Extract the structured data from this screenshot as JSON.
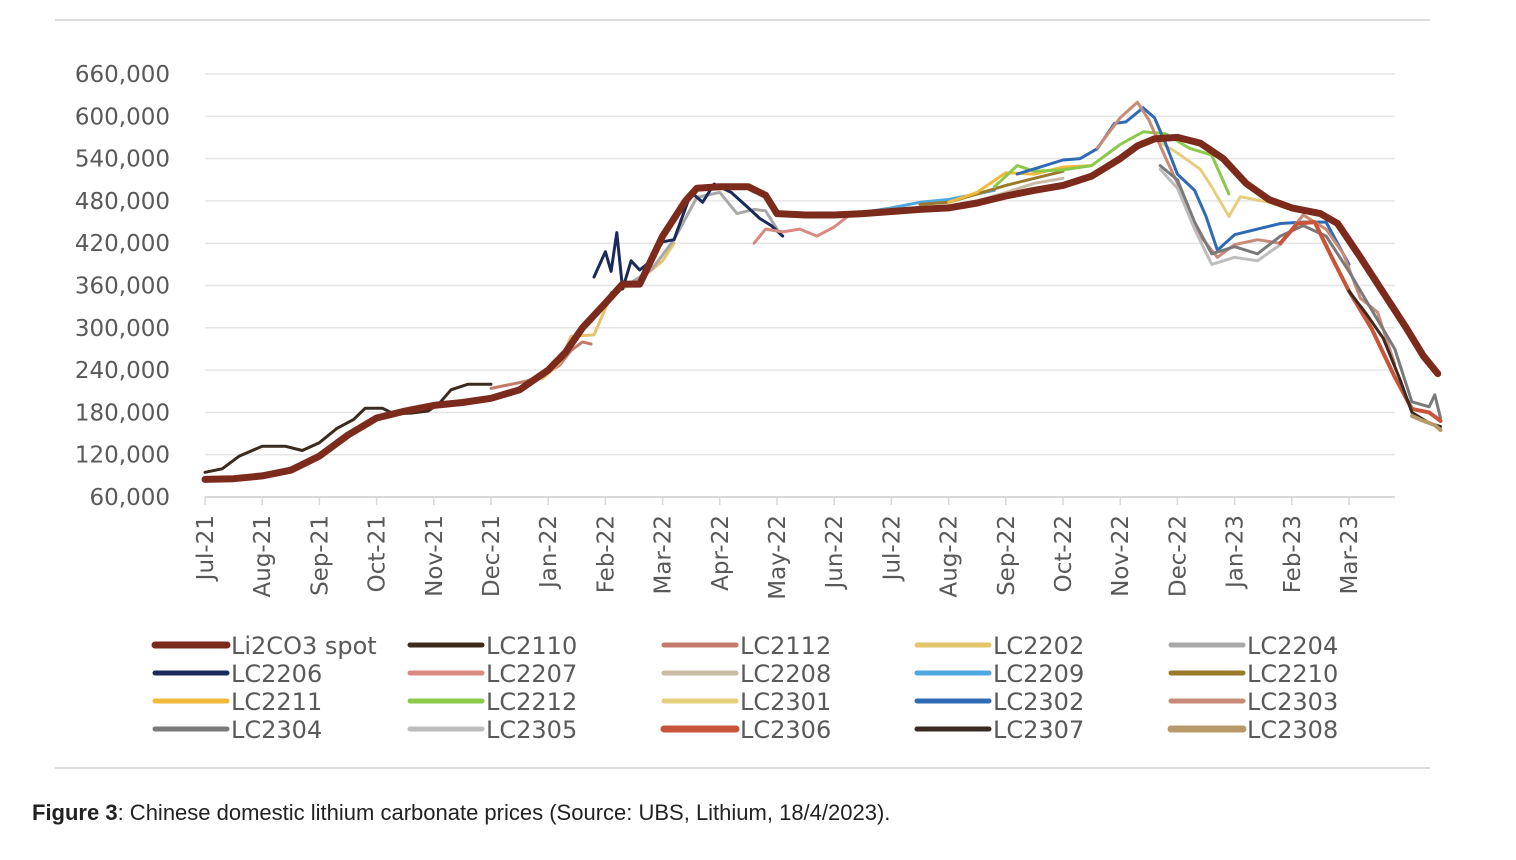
{
  "caption": {
    "label": "Figure 3",
    "text": ": Chinese domestic lithium carbonate prices (Source: UBS, Lithium, 18/4/2023)."
  },
  "chart_data": {
    "type": "line",
    "title": "",
    "xlabel": "",
    "ylabel": "",
    "ylim": [
      60000,
      660000
    ],
    "yticks": [
      "60,000",
      "120,000",
      "180,000",
      "240,000",
      "300,000",
      "360,000",
      "420,000",
      "480,000",
      "540,000",
      "600,000",
      "660,000"
    ],
    "ytick_values": [
      60000,
      120000,
      180000,
      240000,
      300000,
      360000,
      420000,
      480000,
      540000,
      600000,
      660000
    ],
    "xticks": [
      "Jul-21",
      "Aug-21",
      "Sep-21",
      "Oct-21",
      "Nov-21",
      "Dec-21",
      "Jan-22",
      "Feb-22",
      "Mar-22",
      "Apr-22",
      "May-22",
      "Jun-22",
      "Jul-22",
      "Aug-22",
      "Sep-22",
      "Oct-22",
      "Nov-22",
      "Dec-22",
      "Jan-23",
      "Feb-23",
      "Mar-23"
    ],
    "x_unit": "months since Jul-21",
    "xlim": [
      0,
      21.8
    ],
    "grid": "horizontal",
    "legend_position": "bottom",
    "series": [
      {
        "name": "Li2CO3 spot",
        "color": "#7B2A1C",
        "width": 7,
        "points": [
          [
            0,
            85000
          ],
          [
            0.5,
            86000
          ],
          [
            1,
            90000
          ],
          [
            1.5,
            98000
          ],
          [
            2,
            118000
          ],
          [
            2.5,
            148000
          ],
          [
            3,
            172000
          ],
          [
            3.5,
            182000
          ],
          [
            4,
            190000
          ],
          [
            4.5,
            194000
          ],
          [
            5,
            200000
          ],
          [
            5.5,
            212000
          ],
          [
            6,
            240000
          ],
          [
            6.3,
            265000
          ],
          [
            6.6,
            300000
          ],
          [
            7,
            335000
          ],
          [
            7.3,
            362000
          ],
          [
            7.6,
            362000
          ],
          [
            8,
            430000
          ],
          [
            8.4,
            480000
          ],
          [
            8.6,
            498000
          ],
          [
            9,
            500000
          ],
          [
            9.5,
            500000
          ],
          [
            9.8,
            488000
          ],
          [
            10,
            462000
          ],
          [
            10.5,
            460000
          ],
          [
            11,
            460000
          ],
          [
            11.5,
            462000
          ],
          [
            12,
            465000
          ],
          [
            12.5,
            468000
          ],
          [
            13,
            470000
          ],
          [
            13.5,
            477000
          ],
          [
            14,
            487000
          ],
          [
            14.5,
            495000
          ],
          [
            15,
            502000
          ],
          [
            15.5,
            515000
          ],
          [
            16,
            540000
          ],
          [
            16.3,
            558000
          ],
          [
            16.6,
            568000
          ],
          [
            17,
            570000
          ],
          [
            17.4,
            562000
          ],
          [
            17.8,
            540000
          ],
          [
            18.2,
            505000
          ],
          [
            18.6,
            482000
          ],
          [
            19,
            470000
          ],
          [
            19.5,
            462000
          ],
          [
            19.8,
            448000
          ],
          [
            20.2,
            400000
          ],
          [
            20.6,
            350000
          ],
          [
            21,
            300000
          ],
          [
            21.3,
            260000
          ],
          [
            21.55,
            235000
          ]
        ]
      },
      {
        "name": "LC2110",
        "color": "#3B2A1E",
        "width": 3,
        "points": [
          [
            0,
            95000
          ],
          [
            0.3,
            100000
          ],
          [
            0.6,
            118000
          ],
          [
            1,
            132000
          ],
          [
            1.4,
            132000
          ],
          [
            1.7,
            126000
          ],
          [
            2,
            137000
          ],
          [
            2.3,
            157000
          ],
          [
            2.6,
            170000
          ],
          [
            2.8,
            186000
          ],
          [
            3.1,
            186000
          ],
          [
            3.3,
            178000
          ],
          [
            3.6,
            179000
          ],
          [
            3.9,
            182000
          ],
          [
            4.1,
            193000
          ],
          [
            4.3,
            212000
          ],
          [
            4.6,
            220000
          ],
          [
            5,
            220000
          ]
        ]
      },
      {
        "name": "LC2112",
        "color": "#C47A6A",
        "width": 3,
        "points": [
          [
            5,
            214000
          ],
          [
            5.3,
            219000
          ],
          [
            5.6,
            224000
          ],
          [
            5.9,
            232000
          ],
          [
            6.2,
            247000
          ],
          [
            6.4,
            268000
          ],
          [
            6.6,
            280000
          ],
          [
            6.75,
            277000
          ]
        ]
      },
      {
        "name": "LC2202",
        "color": "#E3C46A",
        "width": 3,
        "points": [
          [
            5.9,
            228000
          ],
          [
            6.2,
            250000
          ],
          [
            6.4,
            288000
          ],
          [
            6.8,
            290000
          ],
          [
            7.1,
            346000
          ],
          [
            7.4,
            360000
          ],
          [
            7.6,
            368000
          ],
          [
            8,
            395000
          ],
          [
            8.2,
            420000
          ]
        ]
      },
      {
        "name": "LC2204",
        "color": "#A8A8A8",
        "width": 3,
        "points": [
          [
            7.1,
            350000
          ],
          [
            7.4,
            362000
          ],
          [
            7.8,
            382000
          ],
          [
            8.2,
            425000
          ],
          [
            8.6,
            485000
          ],
          [
            9,
            492000
          ],
          [
            9.3,
            462000
          ],
          [
            9.6,
            468000
          ],
          [
            9.8,
            466000
          ],
          [
            10,
            440000
          ]
        ]
      },
      {
        "name": "LC2206",
        "color": "#1A2A5A",
        "width": 3,
        "points": [
          [
            6.8,
            372000
          ],
          [
            7,
            408000
          ],
          [
            7.1,
            380000
          ],
          [
            7.2,
            435000
          ],
          [
            7.3,
            355000
          ],
          [
            7.45,
            395000
          ],
          [
            7.6,
            382000
          ],
          [
            7.8,
            395000
          ],
          [
            8,
            422000
          ],
          [
            8.2,
            425000
          ],
          [
            8.5,
            492000
          ],
          [
            8.7,
            478000
          ],
          [
            8.9,
            504000
          ],
          [
            9.2,
            492000
          ],
          [
            9.5,
            470000
          ],
          [
            9.7,
            455000
          ],
          [
            9.9,
            445000
          ],
          [
            10.1,
            430000
          ]
        ]
      },
      {
        "name": "LC2207",
        "color": "#D98A80",
        "width": 3,
        "points": [
          [
            9.6,
            420000
          ],
          [
            9.8,
            440000
          ],
          [
            10.1,
            436000
          ],
          [
            10.4,
            440000
          ],
          [
            10.7,
            430000
          ],
          [
            11,
            443000
          ],
          [
            11.3,
            462000
          ],
          [
            11.6,
            460000
          ]
        ]
      },
      {
        "name": "LC2208",
        "color": "#C9BBA5",
        "width": 3,
        "points": [
          [
            11.3,
            460000
          ],
          [
            11.6,
            462000
          ],
          [
            12,
            464000
          ],
          [
            12.5,
            468000
          ],
          [
            13,
            472000
          ],
          [
            13.5,
            480000
          ],
          [
            14,
            492000
          ],
          [
            14.5,
            505000
          ],
          [
            15,
            512000
          ]
        ]
      },
      {
        "name": "LC2209",
        "color": "#4FA7E0",
        "width": 3,
        "points": [
          [
            11.6,
            465000
          ],
          [
            12,
            470000
          ],
          [
            12.5,
            478000
          ],
          [
            13,
            482000
          ],
          [
            13.5,
            490000
          ],
          [
            13.8,
            495000
          ]
        ]
      },
      {
        "name": "LC2210",
        "color": "#9A7A2A",
        "width": 3,
        "points": [
          [
            12.5,
            475000
          ],
          [
            13,
            478000
          ],
          [
            13.5,
            490000
          ],
          [
            14,
            502000
          ],
          [
            14.5,
            512000
          ],
          [
            15,
            522000
          ]
        ]
      },
      {
        "name": "LC2211",
        "color": "#F0B93A",
        "width": 3,
        "points": [
          [
            13,
            478000
          ],
          [
            13.5,
            492000
          ],
          [
            14,
            520000
          ],
          [
            14.5,
            518000
          ],
          [
            15,
            528000
          ],
          [
            15.5,
            530000
          ]
        ]
      },
      {
        "name": "LC2212",
        "color": "#8BC94B",
        "width": 3,
        "points": [
          [
            13.8,
            500000
          ],
          [
            14.2,
            530000
          ],
          [
            14.5,
            522000
          ],
          [
            15,
            524000
          ],
          [
            15.5,
            530000
          ],
          [
            16,
            560000
          ],
          [
            16.4,
            578000
          ],
          [
            16.8,
            575000
          ],
          [
            17.2,
            555000
          ],
          [
            17.6,
            545000
          ],
          [
            17.9,
            490000
          ]
        ]
      },
      {
        "name": "LC2301",
        "color": "#E5CE7C",
        "width": 3,
        "points": [
          [
            16.6,
            568000
          ],
          [
            17,
            548000
          ],
          [
            17.4,
            525000
          ],
          [
            17.6,
            500000
          ],
          [
            17.9,
            458000
          ],
          [
            18.1,
            486000
          ],
          [
            18.6,
            478000
          ],
          [
            18.9,
            470000
          ],
          [
            19.2,
            465000
          ]
        ]
      },
      {
        "name": "LC2302",
        "color": "#2F6BB5",
        "width": 3,
        "points": [
          [
            14.2,
            518000
          ],
          [
            14.6,
            528000
          ],
          [
            15,
            538000
          ],
          [
            15.3,
            540000
          ],
          [
            15.6,
            554000
          ],
          [
            15.9,
            590000
          ],
          [
            16.1,
            592000
          ],
          [
            16.4,
            612000
          ],
          [
            16.6,
            598000
          ],
          [
            16.8,
            560000
          ],
          [
            17,
            518000
          ],
          [
            17.3,
            495000
          ],
          [
            17.5,
            458000
          ],
          [
            17.7,
            410000
          ],
          [
            18,
            432000
          ],
          [
            18.4,
            440000
          ],
          [
            18.8,
            448000
          ],
          [
            19.2,
            450000
          ],
          [
            19.6,
            450000
          ],
          [
            20,
            390000
          ]
        ]
      },
      {
        "name": "LC2303",
        "color": "#C88B78",
        "width": 3,
        "points": [
          [
            15.6,
            555000
          ],
          [
            16,
            598000
          ],
          [
            16.3,
            620000
          ],
          [
            16.5,
            595000
          ],
          [
            16.8,
            540000
          ],
          [
            17.1,
            488000
          ],
          [
            17.4,
            430000
          ],
          [
            17.7,
            400000
          ],
          [
            18,
            418000
          ],
          [
            18.4,
            425000
          ],
          [
            18.8,
            420000
          ],
          [
            19.2,
            460000
          ],
          [
            19.6,
            440000
          ],
          [
            19.9,
            405000
          ],
          [
            20.2,
            342000
          ],
          [
            20.5,
            322000
          ],
          [
            20.8,
            248000
          ]
        ]
      },
      {
        "name": "LC2304",
        "color": "#7A7A7A",
        "width": 3,
        "points": [
          [
            16.7,
            530000
          ],
          [
            17,
            510000
          ],
          [
            17.3,
            450000
          ],
          [
            17.6,
            405000
          ],
          [
            18,
            415000
          ],
          [
            18.4,
            405000
          ],
          [
            18.8,
            430000
          ],
          [
            19.2,
            445000
          ],
          [
            19.6,
            430000
          ],
          [
            20,
            380000
          ],
          [
            20.4,
            325000
          ],
          [
            20.8,
            270000
          ],
          [
            21.1,
            195000
          ],
          [
            21.4,
            188000
          ],
          [
            21.5,
            205000
          ],
          [
            21.6,
            172000
          ]
        ]
      },
      {
        "name": "LC2305",
        "color": "#BDBDBD",
        "width": 3,
        "points": [
          [
            16.7,
            525000
          ],
          [
            17,
            498000
          ],
          [
            17.3,
            440000
          ],
          [
            17.6,
            390000
          ],
          [
            18,
            400000
          ],
          [
            18.4,
            395000
          ],
          [
            18.8,
            418000
          ]
        ]
      },
      {
        "name": "LC2306",
        "color": "#C8553A",
        "width": 4,
        "points": [
          [
            18.8,
            420000
          ],
          [
            19.1,
            448000
          ],
          [
            19.4,
            450000
          ],
          [
            19.7,
            400000
          ],
          [
            20,
            352000
          ],
          [
            20.4,
            298000
          ],
          [
            20.8,
            230000
          ],
          [
            21.1,
            185000
          ],
          [
            21.4,
            180000
          ],
          [
            21.6,
            168000
          ]
        ]
      },
      {
        "name": "LC2307",
        "color": "#3A2A22",
        "width": 3,
        "points": [
          [
            20,
            352000
          ],
          [
            20.3,
            320000
          ],
          [
            20.6,
            285000
          ],
          [
            20.9,
            225000
          ],
          [
            21.1,
            180000
          ],
          [
            21.4,
            165000
          ],
          [
            21.6,
            160000
          ]
        ]
      },
      {
        "name": "LC2308",
        "color": "#B89A6A",
        "width": 4,
        "points": [
          [
            21.1,
            175000
          ],
          [
            21.3,
            168000
          ],
          [
            21.5,
            162000
          ],
          [
            21.6,
            155000
          ]
        ]
      }
    ]
  }
}
